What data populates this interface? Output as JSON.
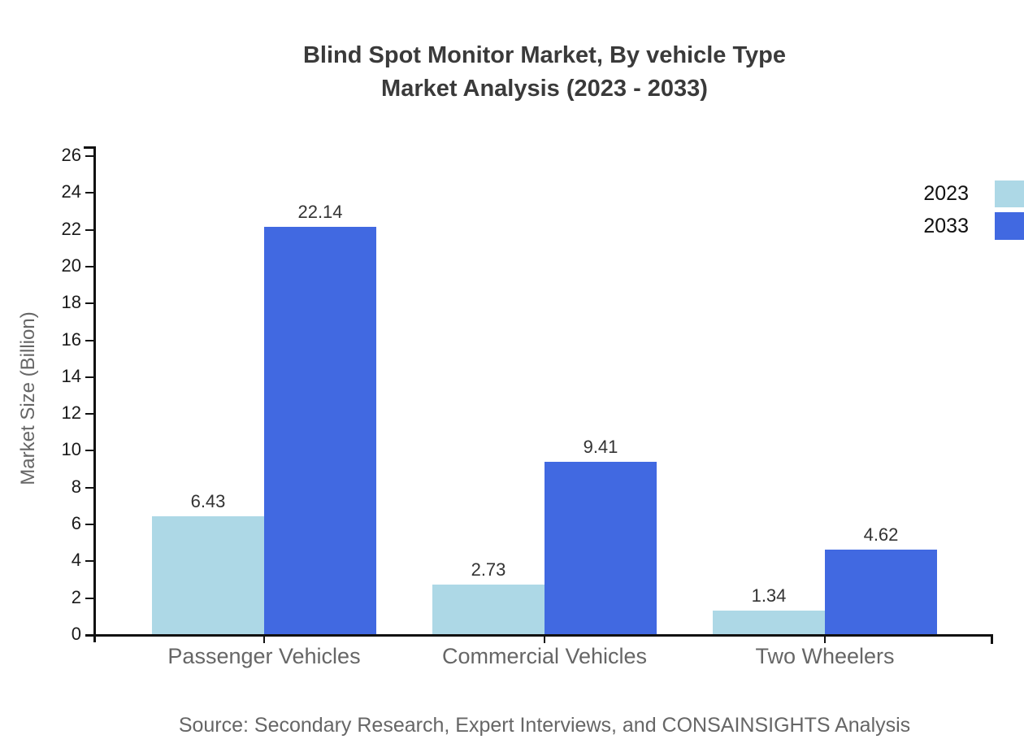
{
  "chart_data": {
    "type": "bar",
    "title_lines": [
      "Blind Spot Monitor Market, By vehicle Type",
      "Market Analysis (2023 - 2033)"
    ],
    "ylabel": "Market Size (Billion)",
    "xlabel": "",
    "categories": [
      "Passenger Vehicles",
      "Commercial Vehicles",
      "Two Wheelers"
    ],
    "series": [
      {
        "name": "2023",
        "color": "#ADD8E6",
        "values": [
          6.43,
          2.73,
          1.34
        ]
      },
      {
        "name": "2033",
        "color": "#4169E1",
        "values": [
          22.14,
          9.41,
          4.62
        ]
      }
    ],
    "ylim": [
      0,
      26
    ],
    "ytick_step": 2,
    "grid": false,
    "legend_position": "top-right",
    "value_label_decimals": 2,
    "source": "Source: Secondary Research, Expert Interviews, and CONSAINSIGHTS Analysis"
  },
  "colors": {
    "background": "#ffffff",
    "axis": "#111111",
    "title_text": "#3a3a3a",
    "tick_text": "#1a1a1a",
    "muted_text": "#666666",
    "series_2023": "#ADD8E6",
    "series_2033": "#4169E1"
  }
}
